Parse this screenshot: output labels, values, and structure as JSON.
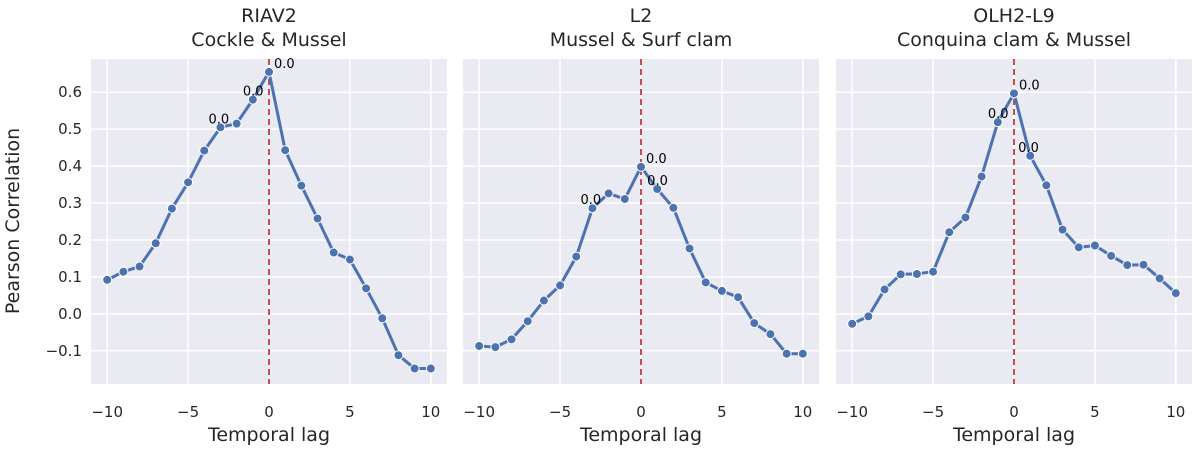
{
  "figure": {
    "ylabel": "Pearson Correlation",
    "shared_y": true
  },
  "style": {
    "panel_bg": "#eaeaf2",
    "grid": "#ffffff",
    "line": "#4c72b0",
    "vline": "#c44e52",
    "text": "#262626"
  },
  "chart_data": [
    {
      "type": "line",
      "title": [
        "RIAV2",
        "Cockle & Mussel"
      ],
      "xlabel": "Temporal lag",
      "xlim": [
        -11,
        11
      ],
      "xticks": [
        -10,
        -5,
        0,
        5,
        10
      ],
      "xtick_labels": [
        "−10",
        "−5",
        "0",
        "5",
        "10"
      ],
      "ylim": [
        -0.19,
        0.69
      ],
      "yticks": [
        -0.1,
        0.0,
        0.1,
        0.2,
        0.3,
        0.4,
        0.5,
        0.6
      ],
      "ytick_labels": [
        "−0.1",
        "0.0",
        "0.1",
        "0.2",
        "0.3",
        "0.4",
        "0.5",
        "0.6"
      ],
      "grid": true,
      "vline_x": 0,
      "x": [
        -10,
        -9,
        -8,
        -7,
        -6,
        -5,
        -4,
        -3,
        -2,
        -1,
        0,
        1,
        2,
        3,
        4,
        5,
        6,
        7,
        8,
        9,
        10
      ],
      "y": [
        0.092,
        0.114,
        0.128,
        0.191,
        0.285,
        0.356,
        0.442,
        0.505,
        0.515,
        0.58,
        0.655,
        0.443,
        0.347,
        0.258,
        0.166,
        0.147,
        0.069,
        -0.012,
        -0.112,
        -0.148,
        -0.148
      ],
      "annotations": [
        {
          "x": 0,
          "y": 0.655,
          "text": "0.0"
        },
        {
          "x": -1,
          "y": 0.58,
          "text": "0.0"
        },
        {
          "x": -3,
          "y": 0.505,
          "text": "0.0"
        }
      ]
    },
    {
      "type": "line",
      "title": [
        "L2",
        "Mussel & Surf clam"
      ],
      "xlabel": "Temporal lag",
      "xlim": [
        -11,
        11
      ],
      "xticks": [
        -10,
        -5,
        0,
        5,
        10
      ],
      "xtick_labels": [
        "−10",
        "−5",
        "0",
        "5",
        "10"
      ],
      "ylim": [
        -0.19,
        0.69
      ],
      "grid": true,
      "vline_x": 0,
      "x": [
        -10,
        -9,
        -8,
        -7,
        -6,
        -5,
        -4,
        -3,
        -2,
        -1,
        0,
        1,
        2,
        3,
        4,
        5,
        6,
        7,
        8,
        9,
        10
      ],
      "y": [
        -0.087,
        -0.09,
        -0.069,
        -0.02,
        0.036,
        0.077,
        0.155,
        0.286,
        0.326,
        0.311,
        0.398,
        0.338,
        0.287,
        0.177,
        0.085,
        0.062,
        0.045,
        -0.025,
        -0.055,
        -0.108,
        -0.108
      ],
      "annotations": [
        {
          "x": 0,
          "y": 0.398,
          "text": "0.0"
        },
        {
          "x": 1,
          "y": 0.338,
          "text": "0.0"
        },
        {
          "x": -3,
          "y": 0.286,
          "text": "0.0"
        }
      ]
    },
    {
      "type": "line",
      "title": [
        "OLH2-L9",
        "Conquina clam & Mussel"
      ],
      "xlabel": "Temporal lag",
      "xlim": [
        -11,
        11
      ],
      "xticks": [
        -10,
        -5,
        0,
        5,
        10
      ],
      "xtick_labels": [
        "−10",
        "−5",
        "0",
        "5",
        "10"
      ],
      "ylim": [
        -0.19,
        0.69
      ],
      "grid": true,
      "vline_x": 0,
      "x": [
        -10,
        -9,
        -8,
        -7,
        -6,
        -5,
        -4,
        -3,
        -2,
        -1,
        0,
        1,
        2,
        3,
        4,
        5,
        6,
        7,
        8,
        9,
        10
      ],
      "y": [
        -0.027,
        -0.007,
        0.066,
        0.107,
        0.108,
        0.114,
        0.221,
        0.261,
        0.372,
        0.519,
        0.597,
        0.428,
        0.348,
        0.228,
        0.18,
        0.185,
        0.157,
        0.132,
        0.133,
        0.096,
        0.056
      ],
      "annotations": [
        {
          "x": 0,
          "y": 0.597,
          "text": "0.0"
        },
        {
          "x": -1,
          "y": 0.519,
          "text": "0.0"
        },
        {
          "x": 1,
          "y": 0.428,
          "text": "0.0"
        }
      ]
    }
  ]
}
